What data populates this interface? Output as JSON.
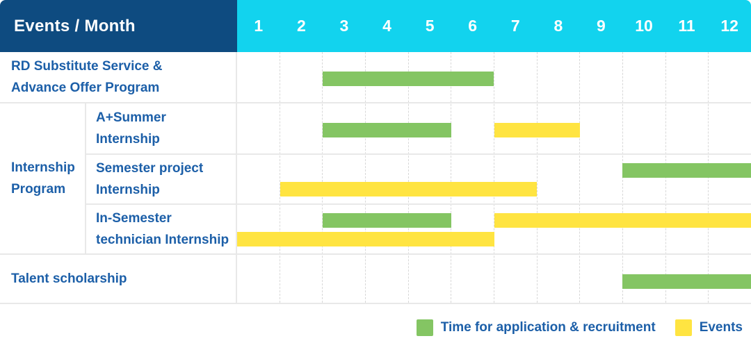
{
  "header": {
    "title": "Events / Month",
    "months": [
      "1",
      "2",
      "3",
      "4",
      "5",
      "6",
      "7",
      "8",
      "9",
      "10",
      "11",
      "12"
    ]
  },
  "colors": {
    "navy": "#0e4b80",
    "cyan": "#12d3ee",
    "green": "#84c563",
    "yellow": "#ffe441",
    "blue": "#1c5fa8",
    "grid": "#e8e8e8",
    "dash": "#d8d8d8"
  },
  "chart_data": {
    "type": "gantt",
    "unit": "month",
    "axis_range": [
      1,
      12
    ],
    "group_label": {
      "label": "Internship Program",
      "lines": [
        "Internship",
        "Program"
      ]
    },
    "rows": [
      {
        "label": "RD Substitute Service & Advance Offer Program",
        "lines": [
          "RD Substitute Service &",
          "Advance Offer Program"
        ],
        "group": "",
        "bars": [
          {
            "category": "Time for application & recruitment",
            "color": "green",
            "start": 3,
            "end": 6,
            "track": "center"
          }
        ]
      },
      {
        "label": "A+Summer Internship",
        "lines": [
          "A+Summer",
          "Internship"
        ],
        "group": "Internship Program",
        "bars": [
          {
            "category": "Time for application & recruitment",
            "color": "green",
            "start": 3,
            "end": 5,
            "track": "center"
          },
          {
            "category": "Events",
            "color": "yellow",
            "start": 7,
            "end": 8,
            "track": "center"
          }
        ]
      },
      {
        "label": "Semester project Internship",
        "lines": [
          "Semester project",
          "Internship"
        ],
        "group": "Internship Program",
        "bars": [
          {
            "category": "Time for application & recruitment",
            "color": "green",
            "start": 10,
            "end": 12,
            "track": "top"
          },
          {
            "category": "Events",
            "color": "yellow",
            "start": 2,
            "end": 7,
            "track": "bottom"
          }
        ]
      },
      {
        "label": "In-Semester technician Internship",
        "lines": [
          "In-Semester",
          "technician Internship"
        ],
        "group": "Internship Program",
        "bars": [
          {
            "category": "Time for application & recruitment",
            "color": "green",
            "start": 3,
            "end": 5,
            "track": "top"
          },
          {
            "category": "Events",
            "color": "yellow",
            "start": 7,
            "end": 12,
            "track": "top"
          },
          {
            "category": "Events",
            "color": "yellow",
            "start": 1,
            "end": 6,
            "track": "bottom"
          }
        ]
      },
      {
        "label": "Talent scholarship",
        "lines": [
          "Talent scholarship"
        ],
        "group": "",
        "bars": [
          {
            "category": "Time for application & recruitment",
            "color": "green",
            "start": 10,
            "end": 12,
            "track": "center"
          }
        ]
      }
    ]
  },
  "legend": {
    "items": [
      {
        "label": "Time for application & recruitment",
        "color": "green"
      },
      {
        "label": "Events",
        "color": "yellow"
      }
    ]
  }
}
